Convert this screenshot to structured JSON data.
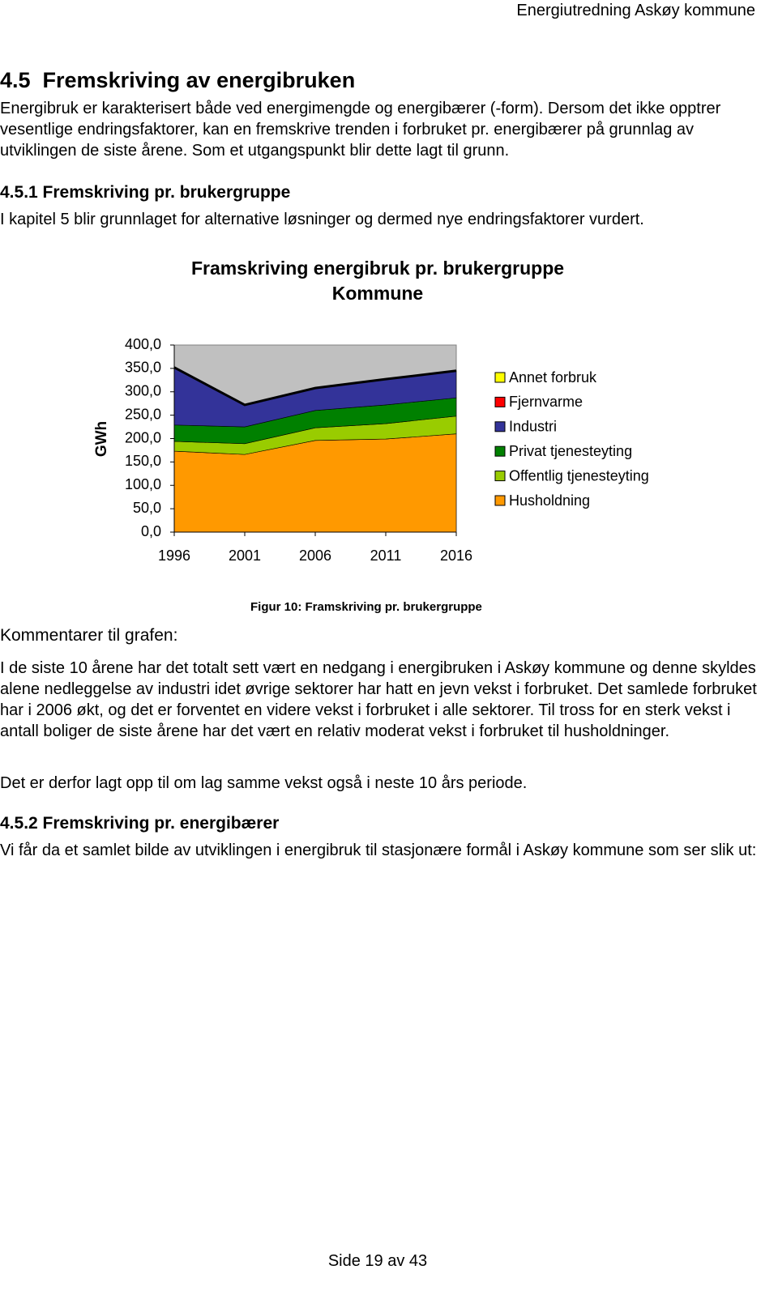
{
  "header": "Energiutredning Askøy kommune",
  "section": {
    "heading": "4.5  Fremskriving av energibruken",
    "paragraph": "Energibruk er karakterisert både ved energimengde og energibærer (-form). Dersom det ikke opptrer vesentlige endringsfaktorer, kan en fremskrive trenden i forbruket pr. energibærer på grunnlag av utviklingen de siste årene. Som et utgangspunkt blir dette lagt til grunn."
  },
  "subsection_1": {
    "heading": "4.5.1 Fremskriving pr. brukergruppe",
    "paragraph": "I kapitel 5 blir grunnlaget for alternative løsninger og dermed nye endringsfaktorer vurdert."
  },
  "chart_data": {
    "type": "stacked_area",
    "title": "Framskriving energibruk pr. brukergruppe",
    "subtitle": "Kommune",
    "y_label": "GWh",
    "categories": [
      "1996",
      "2001",
      "2006",
      "2011",
      "2016"
    ],
    "series": [
      {
        "name": "Annet forbruk",
        "color": "#ffff00",
        "values": [
          0,
          0,
          0,
          0,
          0
        ]
      },
      {
        "name": "Fjernvarme",
        "color": "#ff0000",
        "values": [
          0,
          0,
          0,
          0,
          0
        ]
      },
      {
        "name": "Industri",
        "color": "#333399",
        "values": [
          123,
          47,
          48,
          55,
          58
        ]
      },
      {
        "name": "Privat tjenesteyting",
        "color": "#008000",
        "values": [
          35,
          36,
          37,
          40,
          39
        ]
      },
      {
        "name": "Offentlig tjenesteyting",
        "color": "#99cc00",
        "values": [
          21,
          23,
          27,
          33,
          38
        ]
      },
      {
        "name": "Husholdning",
        "color": "#ff9900",
        "values": [
          173,
          166,
          196,
          199,
          210
        ]
      }
    ],
    "ylim": [
      0,
      400
    ],
    "yticks": [
      {
        "value": 0,
        "label": "0,0"
      },
      {
        "value": 50,
        "label": "50,0"
      },
      {
        "value": 100,
        "label": "100,0"
      },
      {
        "value": 150,
        "label": "150,0"
      },
      {
        "value": 200,
        "label": "200,0"
      },
      {
        "value": 250,
        "label": "250,0"
      },
      {
        "value": 300,
        "label": "300,0"
      },
      {
        "value": 350,
        "label": "350,0"
      },
      {
        "value": 400,
        "label": "400,0"
      }
    ],
    "plot_background": "#c0c0c0",
    "legend": "right"
  },
  "caption": "Figur 10: Framskriving pr. brukergruppe",
  "comments": {
    "heading": "Kommentarer til grafen:",
    "paragraphs": [
      "I de siste 10 årene har det totalt sett vært en nedgang i energibruken i Askøy kommune og denne skyldes alene nedleggelse av industri idet øvrige sektorer har hatt en jevn vekst i forbruket. Det samlede forbruket har i 2006 økt, og det er forventet en videre vekst i forbruket i alle sektorer. Til tross for en sterk vekst i antall boliger de siste årene har det vært en relativ moderat vekst i forbruket til husholdninger.",
      "Det er derfor lagt opp til om lag samme vekst også i neste 10 års periode."
    ]
  },
  "subsection_2": {
    "heading": "4.5.2 Fremskriving pr. energibærer",
    "paragraph": "Vi får da et samlet bilde av utviklingen i energibruk til stasjonære formål i Askøy kommune som ser slik ut:"
  },
  "footer": "Side 19 av 43"
}
